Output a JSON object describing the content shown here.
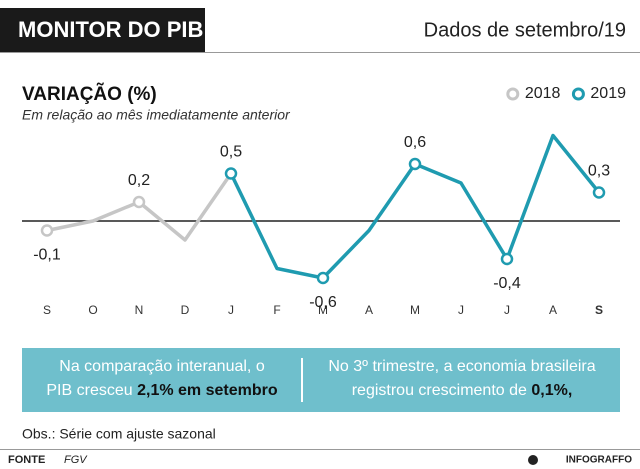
{
  "header": {
    "title": "MONITOR DO PIB",
    "date": "Dados de setembro/19"
  },
  "chart_data": {
    "type": "line",
    "title": "VARIAÇÃO (%)",
    "subtitle": "Em relação ao mês imediatamente anterior",
    "categories": [
      "S",
      "O",
      "N",
      "D",
      "J",
      "F",
      "M",
      "A",
      "M",
      "J",
      "J",
      "A",
      "S"
    ],
    "series": [
      {
        "name": "2018",
        "color": "#c6c6c6",
        "values": [
          -0.1,
          0,
          0.2,
          -0.2,
          0.5,
          null,
          null,
          null,
          null,
          null,
          null,
          null,
          null
        ],
        "value_labels": [
          "-0,1",
          null,
          "0,2",
          null,
          null,
          null,
          null,
          null,
          null,
          null,
          null,
          null,
          null
        ]
      },
      {
        "name": "2019",
        "color": "#1f9bb0",
        "values": [
          null,
          null,
          null,
          null,
          0.5,
          -0.5,
          -0.6,
          -0.1,
          0.6,
          0.4,
          -0.4,
          0.9,
          0.3
        ],
        "value_labels": [
          null,
          null,
          null,
          null,
          "0,5",
          null,
          "-0,6",
          null,
          "0,6",
          null,
          "-0,4",
          null,
          "0,3"
        ]
      }
    ],
    "ylim": [
      -0.75,
      1.0
    ],
    "legend": "top-right"
  },
  "notes": {
    "left": {
      "line1": "Na comparação interanual, o",
      "line2": "PIB cresceu",
      "bold": "2,1% em setembro"
    },
    "right": {
      "line1": "No 3º trimestre, a economia brasileira",
      "line2": "registrou crescimento de",
      "bold": "0,1%,"
    }
  },
  "footer": {
    "obs": "Obs.: Série com ajuste sazonal",
    "source_label": "FONTE",
    "source": "FGV",
    "brand": "INFOGRAFFO"
  }
}
